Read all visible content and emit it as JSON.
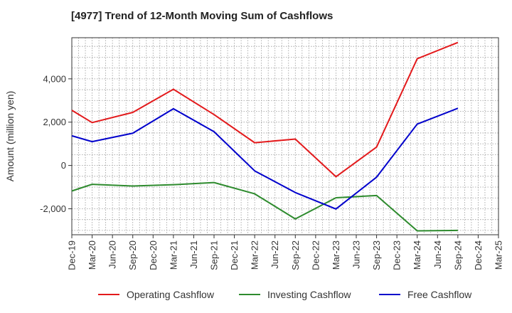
{
  "chart_data": {
    "type": "line",
    "title": "[4977]  Trend of 12-Month Moving Sum of Cashflows",
    "xlabel": "",
    "ylabel": "Amount (million yen)",
    "categories": [
      "Dec-19",
      "Mar-20",
      "Jun-20",
      "Sep-20",
      "Dec-20",
      "Mar-21",
      "Jun-21",
      "Sep-21",
      "Dec-21",
      "Mar-22",
      "Jun-22",
      "Sep-22",
      "Dec-22",
      "Mar-23",
      "Jun-23",
      "Sep-23",
      "Dec-23",
      "Mar-24",
      "Jun-24",
      "Sep-24",
      "Dec-24",
      "Mar-25"
    ],
    "ylim": [
      -3200,
      5900
    ],
    "yticks": [
      -2000,
      0,
      2000,
      4000
    ],
    "ytick_labels": [
      "-2,000",
      "0",
      "2,000",
      "4,000"
    ],
    "grid": true,
    "legend_position": "bottom",
    "series": [
      {
        "name": "Operating Cashflow",
        "color": "#e31a1c",
        "values": [
          2550,
          1980,
          null,
          2450,
          null,
          3520,
          null,
          2350,
          null,
          1050,
          null,
          1220,
          null,
          -520,
          null,
          850,
          null,
          4930,
          null,
          5680,
          null,
          null
        ]
      },
      {
        "name": "Investing Cashflow",
        "color": "#2e8b2e",
        "values": [
          -1180,
          -870,
          null,
          -950,
          null,
          -890,
          null,
          -790,
          null,
          -1310,
          null,
          -2470,
          null,
          -1490,
          null,
          -1390,
          null,
          -3020,
          null,
          -3000,
          null,
          null
        ]
      },
      {
        "name": "Free Cashflow",
        "color": "#0000cc",
        "values": [
          1370,
          1100,
          null,
          1490,
          null,
          2620,
          null,
          1560,
          null,
          -250,
          null,
          -1250,
          null,
          -2010,
          null,
          -540,
          null,
          1910,
          null,
          2640,
          null,
          null
        ]
      }
    ]
  }
}
